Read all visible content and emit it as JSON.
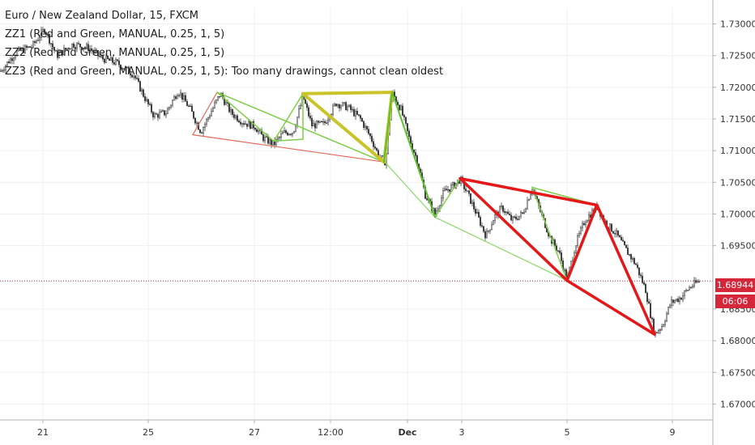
{
  "chart_data": {
    "type": "line",
    "title": "Euro / New Zealand Dollar, 15, FXCM",
    "legend_lines": [
      "ZZ1 (Red and Green, MANUAL, 0.25, 1, 5)",
      "ZZ2 (Red and Green, MANUAL, 0.25, 1, 5)",
      "ZZ3 (Red and Green, MANUAL, 0.25, 1, 5): Too many drawings, cannot clean oldest"
    ],
    "x_ticks": [
      "21",
      "25",
      "27",
      "12:00",
      "Dec",
      "3",
      "5",
      "9"
    ],
    "y_ticks": [
      "1.73000",
      "1.72500",
      "1.72000",
      "1.71500",
      "1.71000",
      "1.70500",
      "1.70000",
      "1.69500",
      "1.68500",
      "1.68000",
      "1.67500",
      "1.67000"
    ],
    "ylim": [
      1.6675,
      1.7325
    ],
    "current_price": "1.68944",
    "countdown": "06:06",
    "price_path": [
      [
        0,
        1.7225
      ],
      [
        20,
        1.7255
      ],
      [
        40,
        1.7265
      ],
      [
        55,
        1.7292
      ],
      [
        70,
        1.725
      ],
      [
        90,
        1.7268
      ],
      [
        110,
        1.7262
      ],
      [
        125,
        1.7246
      ],
      [
        145,
        1.7238
      ],
      [
        165,
        1.722
      ],
      [
        180,
        1.718
      ],
      [
        190,
        1.7155
      ],
      [
        205,
        1.716
      ],
      [
        220,
        1.7195
      ],
      [
        235,
        1.7165
      ],
      [
        248,
        1.713
      ],
      [
        260,
        1.716
      ],
      [
        272,
        1.719
      ],
      [
        285,
        1.716
      ],
      [
        300,
        1.7145
      ],
      [
        315,
        1.7138
      ],
      [
        325,
        1.712
      ],
      [
        338,
        1.711
      ],
      [
        350,
        1.7128
      ],
      [
        362,
        1.713
      ],
      [
        374,
        1.7185
      ],
      [
        385,
        1.714
      ],
      [
        400,
        1.7142
      ],
      [
        415,
        1.7175
      ],
      [
        430,
        1.7168
      ],
      [
        445,
        1.715
      ],
      [
        458,
        1.712
      ],
      [
        468,
        1.709
      ],
      [
        476,
        1.7082
      ],
      [
        484,
        1.7192
      ],
      [
        495,
        1.7165
      ],
      [
        505,
        1.712
      ],
      [
        515,
        1.7085
      ],
      [
        525,
        1.703
      ],
      [
        537,
        1.7
      ],
      [
        548,
        1.7035
      ],
      [
        560,
        1.7045
      ],
      [
        568,
        1.7055
      ],
      [
        578,
        1.703
      ],
      [
        590,
        1.6995
      ],
      [
        600,
        1.6965
      ],
      [
        610,
        1.6995
      ],
      [
        620,
        1.701
      ],
      [
        632,
        1.699
      ],
      [
        645,
        1.7
      ],
      [
        657,
        1.7042
      ],
      [
        668,
        1.7
      ],
      [
        680,
        1.696
      ],
      [
        690,
        1.694
      ],
      [
        700,
        1.6895
      ],
      [
        710,
        1.695
      ],
      [
        722,
        1.699
      ],
      [
        737,
        1.7012
      ],
      [
        748,
        1.6985
      ],
      [
        760,
        1.697
      ],
      [
        772,
        1.6945
      ],
      [
        785,
        1.692
      ],
      [
        797,
        1.688
      ],
      [
        808,
        1.681
      ],
      [
        818,
        1.6825
      ],
      [
        828,
        1.686
      ],
      [
        840,
        1.6868
      ],
      [
        852,
        1.6885
      ],
      [
        864,
        1.6895
      ]
    ],
    "zigzags": [
      {
        "name": "red-thin",
        "color": "#e06a5a",
        "width": 1.2,
        "points": [
          [
            238,
            1.7125
          ],
          [
            268,
            1.7192
          ],
          [
            238,
            1.7125
          ],
          [
            475,
            1.7082
          ]
        ]
      },
      {
        "name": "green-light",
        "color": "#8ed86a",
        "width": 1.2,
        "points": [
          [
            475,
            1.7082
          ],
          [
            537,
            1.6995
          ],
          [
            700,
            1.6895
          ]
        ]
      },
      {
        "name": "green-mid",
        "color": "#7dce45",
        "width": 1.5,
        "points": [
          [
            268,
            1.7192
          ],
          [
            338,
            1.7115
          ],
          [
            374,
            1.719
          ],
          [
            374,
            1.7118
          ],
          [
            338,
            1.7115
          ],
          [
            268,
            1.7192
          ],
          [
            474,
            1.7082
          ],
          [
            374,
            1.719
          ],
          [
            484,
            1.7192
          ]
        ]
      },
      {
        "name": "green-mid-2",
        "color": "#7dce45",
        "width": 1.5,
        "points": [
          [
            537,
            1.6995
          ],
          [
            568,
            1.7056
          ],
          [
            700,
            1.6895
          ],
          [
            657,
            1.7042
          ],
          [
            737,
            1.7014
          ]
        ]
      },
      {
        "name": "olive-thick",
        "color": "#c9c42a",
        "width": 4,
        "points": [
          [
            374,
            1.719
          ],
          [
            484,
            1.7192
          ],
          [
            474,
            1.7082
          ],
          [
            374,
            1.719
          ]
        ]
      },
      {
        "name": "green-bright",
        "color": "#58c42a",
        "width": 2,
        "points": [
          [
            474,
            1.7082
          ],
          [
            484,
            1.7192
          ],
          [
            537,
            1.6995
          ]
        ]
      },
      {
        "name": "red-thick",
        "color": "#e41818",
        "width": 3.5,
        "points": [
          [
            568,
            1.7056
          ],
          [
            700,
            1.6895
          ],
          [
            737,
            1.7014
          ],
          [
            568,
            1.7056
          ],
          [
            737,
            1.7014
          ],
          [
            808,
            1.681
          ],
          [
            700,
            1.6895
          ],
          [
            737,
            1.7014
          ]
        ]
      }
    ]
  }
}
